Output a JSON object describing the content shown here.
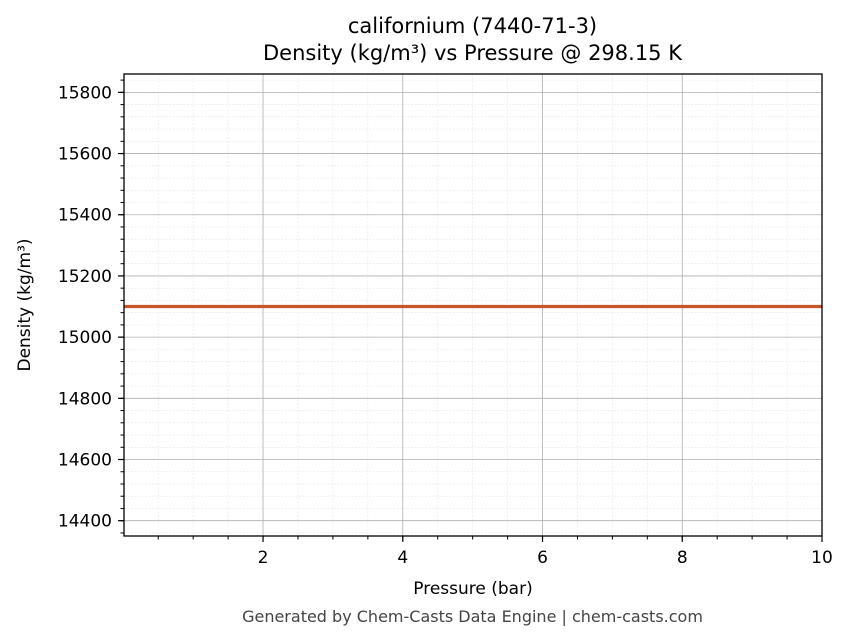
{
  "header": {
    "title_line1": "californium (7440-71-3)",
    "title_line2": "Density (kg/m³) vs Pressure @ 298.15 K"
  },
  "footer": {
    "text": "Generated by Chem-Casts Data Engine | chem-casts.com"
  },
  "chart_data": {
    "type": "line",
    "title": "californium (7440-71-3)",
    "subtitle": "Density (kg/m³) vs Pressure @ 298.15 K",
    "xlabel": "Pressure (bar)",
    "ylabel": "Density (kg/m³)",
    "xlim": [
      0.01,
      10
    ],
    "ylim": [
      14350,
      15860
    ],
    "x_ticks": [
      2,
      4,
      6,
      8,
      10
    ],
    "y_ticks": [
      14400,
      14600,
      14800,
      15000,
      15200,
      15400,
      15600,
      15800
    ],
    "grid": true,
    "minor_grid": true,
    "legend": "none",
    "series": [
      {
        "x": [
          0.01,
          10
        ],
        "y": [
          15100,
          15100
        ],
        "color": "#c8552a"
      }
    ]
  }
}
